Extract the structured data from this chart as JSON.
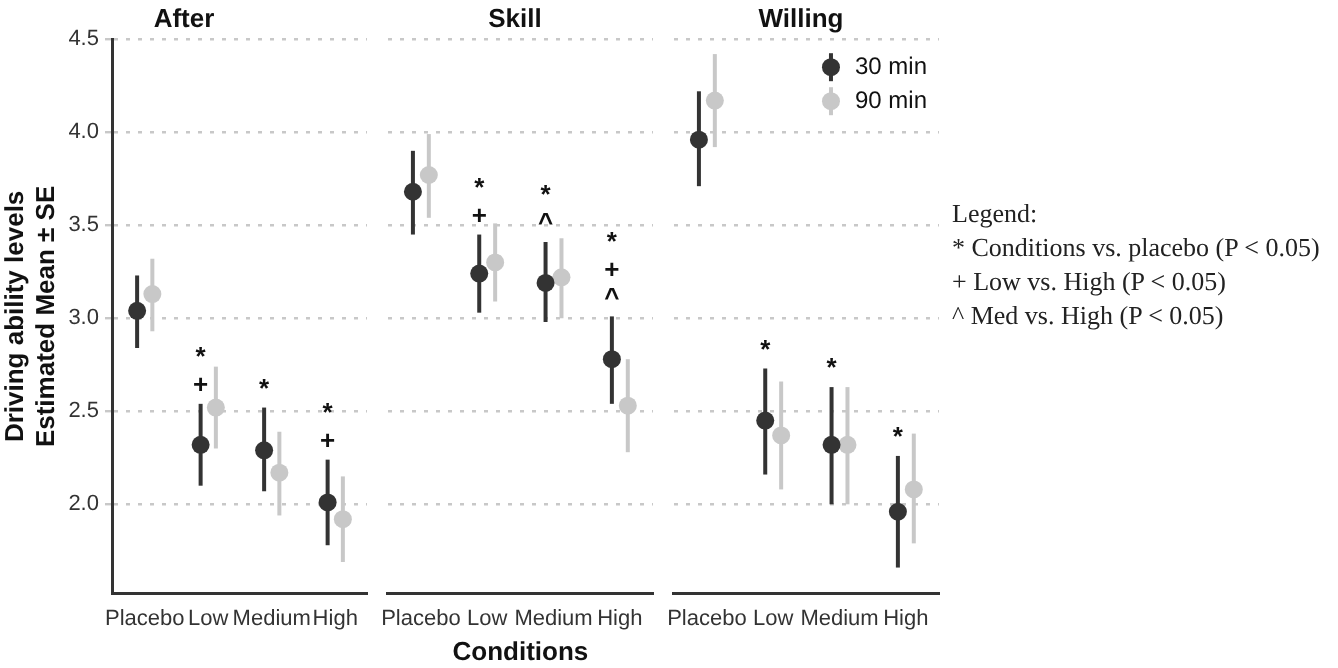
{
  "chart_data": [
    {
      "type": "scatter",
      "title": "After",
      "ylabel": "Driving ability levels\nEstimated Mean ± SE",
      "categories": [
        "Placebo",
        "Low",
        "Medium",
        "High"
      ],
      "series": [
        {
          "color": "#333333",
          "values": [
            3.04,
            2.32,
            2.29,
            2.01
          ],
          "errors": [
            [
              2.84,
              3.23
            ],
            [
              2.1,
              2.54
            ],
            [
              2.07,
              2.52
            ],
            [
              1.78,
              2.24
            ]
          ],
          "value_labels": [
            null,
            "*\n+",
            "*",
            "*\n+"
          ]
        },
        {
          "color": "#c8c8c8",
          "values": [
            3.13,
            2.52,
            2.17,
            1.92
          ],
          "errors": [
            [
              2.93,
              3.32
            ],
            [
              2.3,
              2.74
            ],
            [
              1.94,
              2.39
            ],
            [
              1.69,
              2.15
            ]
          ]
        }
      ],
      "ylim": [
        1.52,
        4.5
      ],
      "yticks": [
        {
          "value": 2,
          "label": "2.0"
        },
        2.5,
        {
          "value": 3,
          "label": "3.0"
        },
        3.5,
        {
          "value": 4,
          "label": "4.0"
        },
        4.5
      ],
      "grid": "y",
      "marker": "circle",
      "legend": false
    },
    {
      "type": "scatter",
      "title": "Skill",
      "xlabel": "Conditions",
      "categories": [
        "Placebo",
        "Low",
        "Medium",
        "High"
      ],
      "series": [
        {
          "color": "#333333",
          "values": [
            3.68,
            3.24,
            3.19,
            2.78
          ],
          "errors": [
            [
              3.45,
              3.9
            ],
            [
              3.03,
              3.45
            ],
            [
              2.98,
              3.41
            ],
            [
              2.54,
              3.01
            ]
          ],
          "value_labels": [
            null,
            "*\n+",
            "*\n^",
            "*\n+\n^"
          ]
        },
        {
          "color": "#c8c8c8",
          "values": [
            3.77,
            3.3,
            3.22,
            2.53
          ],
          "errors": [
            [
              3.54,
              3.99
            ],
            [
              3.09,
              3.51
            ],
            [
              3.0,
              3.43
            ],
            [
              2.28,
              2.78
            ]
          ]
        }
      ],
      "ylim": [
        1.52,
        4.5
      ],
      "tick_labels": "x",
      "grid": "y",
      "marker": "circle",
      "legend": false
    },
    {
      "type": "scatter",
      "title": "Willing",
      "categories": [
        "Placebo",
        "Low",
        "Medium",
        "High"
      ],
      "series": [
        {
          "name": "30 min",
          "color": "#333333",
          "values": [
            3.96,
            2.45,
            2.32,
            1.96
          ],
          "errors": [
            [
              3.71,
              4.22
            ],
            [
              2.16,
              2.73
            ],
            [
              2.0,
              2.63
            ],
            [
              1.66,
              2.26
            ]
          ],
          "value_labels": [
            null,
            "*",
            "*",
            "*"
          ]
        },
        {
          "name": "90 min",
          "color": "#c8c8c8",
          "values": [
            4.17,
            2.37,
            2.32,
            2.08
          ],
          "errors": [
            [
              3.92,
              4.42
            ],
            [
              2.08,
              2.66
            ],
            [
              2.0,
              2.63
            ],
            [
              1.79,
              2.38
            ]
          ]
        }
      ],
      "ylim": [
        1.52,
        4.5
      ],
      "tick_labels": "x",
      "grid": "y",
      "marker": "circle",
      "legend": "top right",
      "annotations": [
        "Legend:",
        "* Conditions vs. placebo (P < 0.05)",
        "+ Low vs. High (P < 0.05)",
        "^ Med vs. High (P < 0.05)"
      ]
    }
  ]
}
